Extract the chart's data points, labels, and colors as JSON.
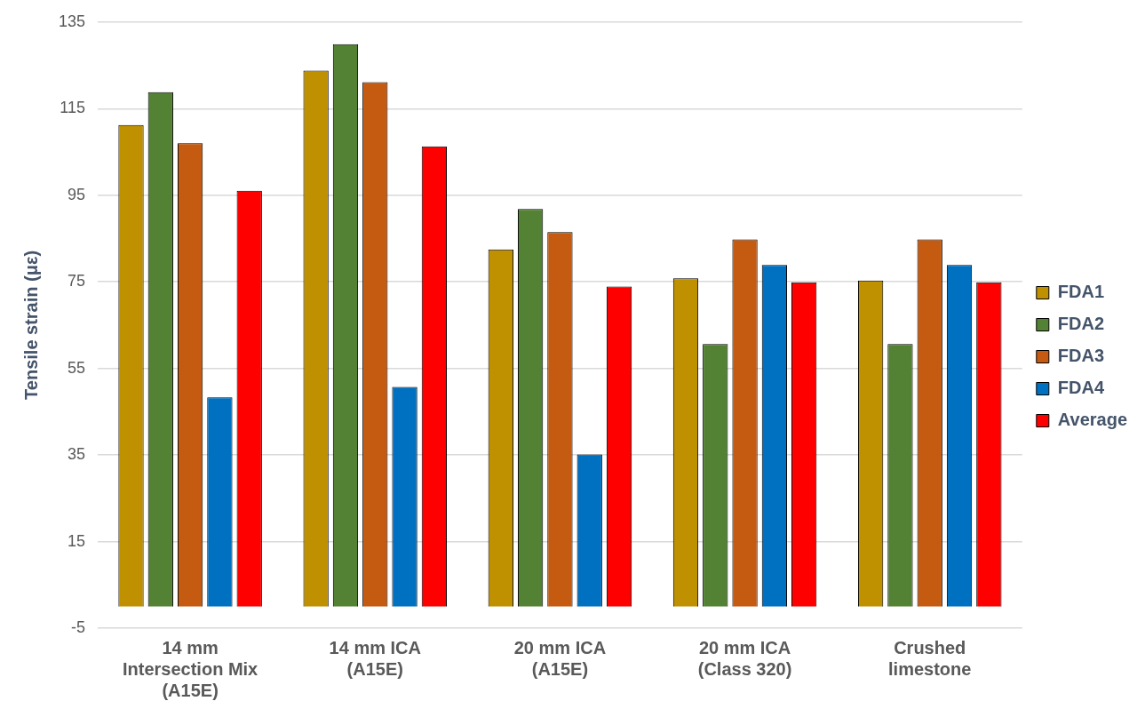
{
  "chart_data": {
    "type": "bar",
    "ylabel": "Tensile strain (με)",
    "categories": [
      "14 mm\nIntersection Mix\n(A15E)",
      "14 mm ICA\n(A15E)",
      "20 mm ICA\n(A15E)",
      "20 mm ICA\n(Class 320)",
      "Crushed\nlimestone"
    ],
    "series": [
      {
        "name": "FDA1",
        "color": "#bf9000",
        "values": [
          111.2,
          123.8,
          82.5,
          75.8,
          75.3
        ]
      },
      {
        "name": "FDA2",
        "color": "#548235",
        "values": [
          118.8,
          129.9,
          91.8,
          60.6,
          60.6
        ]
      },
      {
        "name": "FDA3",
        "color": "#c55a11",
        "values": [
          107,
          121.1,
          86.5,
          84.8,
          84.8
        ]
      },
      {
        "name": "FDA4",
        "color": "#0070c0",
        "values": [
          48.3,
          50.7,
          35.1,
          78.9,
          78.9
        ]
      },
      {
        "name": "Average",
        "color": "#ff0000",
        "values": [
          96,
          106.3,
          73.9,
          74.9,
          74.9
        ]
      }
    ],
    "ylim": [
      -5,
      135
    ],
    "yticks": [
      -5,
      15,
      35,
      55,
      75,
      95,
      115,
      135
    ],
    "grid": "y",
    "legend": "right"
  }
}
